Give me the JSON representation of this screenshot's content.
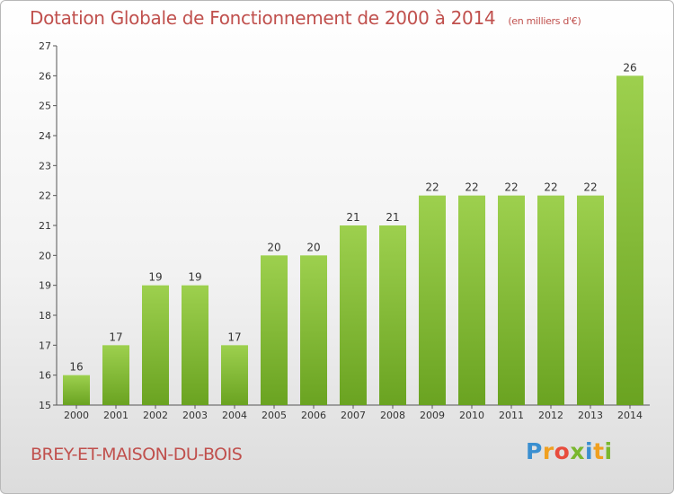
{
  "chart_data": {
    "type": "bar",
    "title": "Dotation Globale de Fonctionnement de 2000 à 2014",
    "subtitle": "(en milliers d'€)",
    "categories": [
      "2000",
      "2001",
      "2002",
      "2003",
      "2004",
      "2005",
      "2006",
      "2007",
      "2008",
      "2009",
      "2010",
      "2011",
      "2012",
      "2013",
      "2014"
    ],
    "values": [
      16,
      17,
      19,
      19,
      17,
      20,
      20,
      21,
      21,
      22,
      22,
      22,
      22,
      22,
      26
    ],
    "xlabel": "",
    "ylabel": "",
    "ylim": [
      15,
      27
    ],
    "yticks": [
      15,
      16,
      17,
      18,
      19,
      20,
      21,
      22,
      23,
      24,
      25,
      26,
      27
    ],
    "grid": false,
    "bar_color": "#7ab72e",
    "bar_color_light": "#9dd04e"
  },
  "footer": {
    "commune": "BREY-ET-MAISON-DU-BOIS",
    "logo_letters": [
      {
        "ch": "P",
        "color": "#3a8fd0"
      },
      {
        "ch": "r",
        "color": "#f0a020"
      },
      {
        "ch": "o",
        "color": "#e84c3d"
      },
      {
        "ch": "x",
        "color": "#7ab72e"
      },
      {
        "ch": "i",
        "color": "#3a8fd0"
      },
      {
        "ch": "t",
        "color": "#f0a020"
      },
      {
        "ch": "i",
        "color": "#7ab72e"
      }
    ]
  },
  "colors": {
    "title": "#c0504d",
    "axis": "#555555"
  }
}
